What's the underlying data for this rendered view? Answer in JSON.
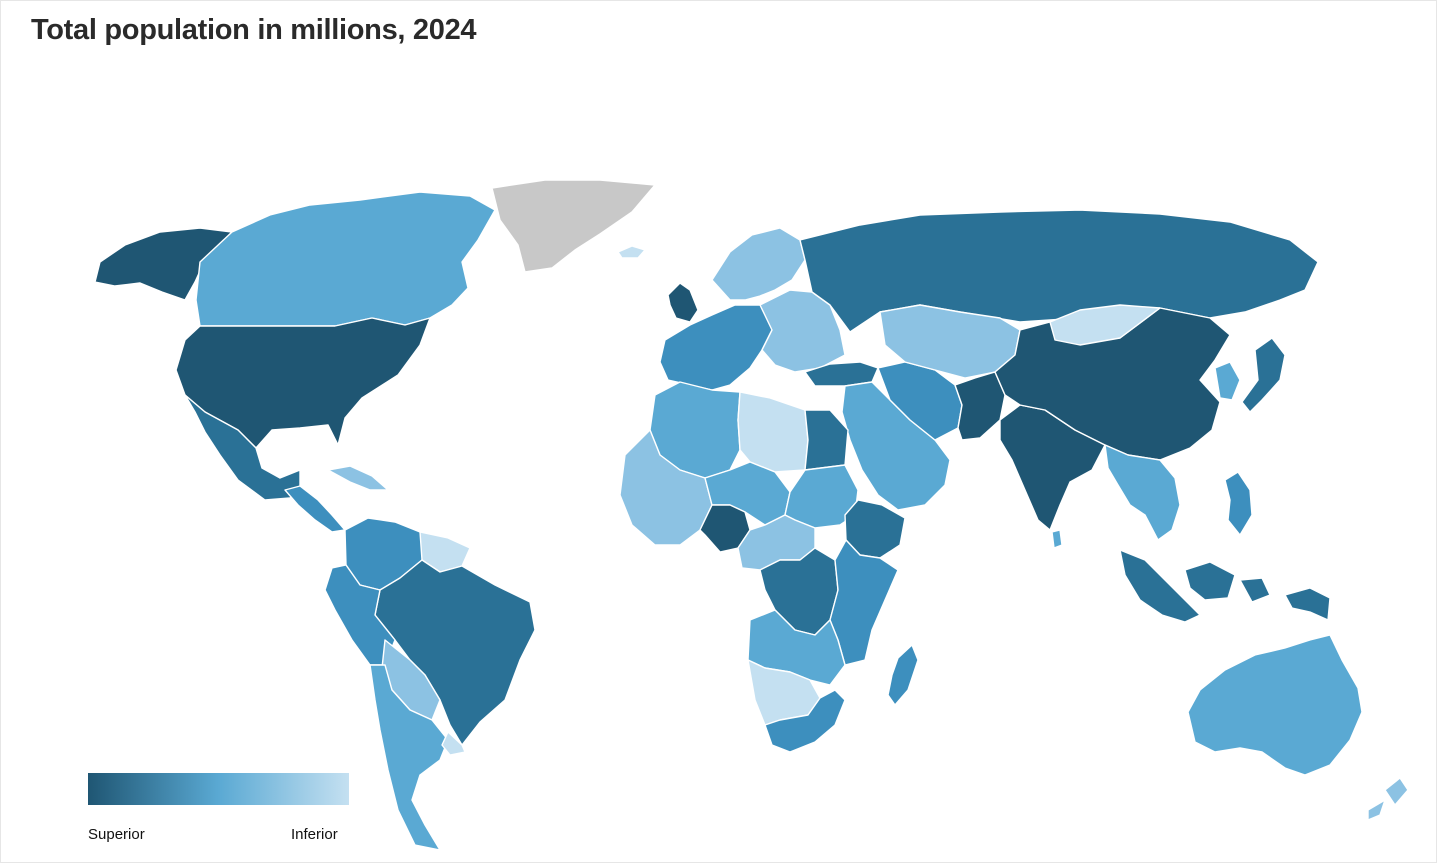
{
  "title": "Total population in millions, 2024",
  "legend": {
    "high_label": "Superior",
    "low_label": "Inferior"
  },
  "colors": {
    "darkest": "#1f5673",
    "dark": "#2a7196",
    "mid_dark": "#3d8fbe",
    "mid": "#5aa9d3",
    "light": "#8cc2e3",
    "lightest": "#c4e0f1",
    "no_data": "#c8c8c8"
  },
  "regions": [
    {
      "name": "alaska",
      "shade": "darkest"
    },
    {
      "name": "canada",
      "shade": "mid"
    },
    {
      "name": "greenland",
      "shade": "no_data"
    },
    {
      "name": "usa",
      "shade": "darkest"
    },
    {
      "name": "mexico",
      "shade": "dark"
    },
    {
      "name": "central-america",
      "shade": "mid_dark"
    },
    {
      "name": "caribbean",
      "shade": "light"
    },
    {
      "name": "colombia-venezuela",
      "shade": "mid_dark"
    },
    {
      "name": "guianas",
      "shade": "lightest"
    },
    {
      "name": "brazil",
      "shade": "dark"
    },
    {
      "name": "peru-ecuador",
      "shade": "mid_dark"
    },
    {
      "name": "bolivia-paraguay",
      "shade": "light"
    },
    {
      "name": "argentina-chile",
      "shade": "mid"
    },
    {
      "name": "uruguay",
      "shade": "lightest"
    },
    {
      "name": "iceland",
      "shade": "lightest"
    },
    {
      "name": "uk",
      "shade": "darkest"
    },
    {
      "name": "scandinavia",
      "shade": "light"
    },
    {
      "name": "western-europe",
      "shade": "mid_dark"
    },
    {
      "name": "eastern-europe",
      "shade": "light"
    },
    {
      "name": "russia",
      "shade": "dark"
    },
    {
      "name": "turkey",
      "shade": "dark"
    },
    {
      "name": "middle-east",
      "shade": "mid"
    },
    {
      "name": "iran",
      "shade": "mid_dark"
    },
    {
      "name": "central-asia",
      "shade": "light"
    },
    {
      "name": "pakistan",
      "shade": "darkest"
    },
    {
      "name": "india",
      "shade": "darkest"
    },
    {
      "name": "sri-lanka",
      "shade": "mid"
    },
    {
      "name": "china",
      "shade": "darkest"
    },
    {
      "name": "mongolia",
      "shade": "lightest"
    },
    {
      "name": "korea",
      "shade": "mid"
    },
    {
      "name": "japan",
      "shade": "dark"
    },
    {
      "name": "southeast-asia",
      "shade": "mid"
    },
    {
      "name": "indonesia",
      "shade": "dark"
    },
    {
      "name": "philippines",
      "shade": "mid_dark"
    },
    {
      "name": "papua",
      "shade": "dark"
    },
    {
      "name": "australia",
      "shade": "mid"
    },
    {
      "name": "new-zealand",
      "shade": "light"
    },
    {
      "name": "north-africa",
      "shade": "mid"
    },
    {
      "name": "libya",
      "shade": "lightest"
    },
    {
      "name": "egypt",
      "shade": "dark"
    },
    {
      "name": "west-africa",
      "shade": "light"
    },
    {
      "name": "sahel",
      "shade": "mid"
    },
    {
      "name": "nigeria",
      "shade": "darkest"
    },
    {
      "name": "sudan",
      "shade": "mid"
    },
    {
      "name": "ethiopia",
      "shade": "dark"
    },
    {
      "name": "east-africa",
      "shade": "mid_dark"
    },
    {
      "name": "central-africa",
      "shade": "light"
    },
    {
      "name": "dr-congo",
      "shade": "dark"
    },
    {
      "name": "angola-zambia",
      "shade": "mid"
    },
    {
      "name": "namibia-botswana",
      "shade": "lightest"
    },
    {
      "name": "south-africa",
      "shade": "mid_dark"
    },
    {
      "name": "madagascar",
      "shade": "mid_dark"
    }
  ]
}
